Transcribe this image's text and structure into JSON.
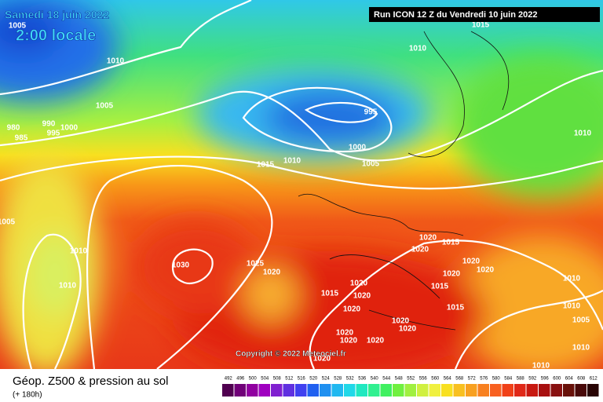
{
  "header": {
    "date": "Samedi 18 juin 2022",
    "time": "2:00 locale",
    "run": "Run ICON 12 Z du Vendredi 10 juin 2022"
  },
  "copyright": "Copyright © 2022 Meteociel.fr",
  "footer": {
    "title": "Géop. Z500 & pression au sol",
    "subtitle": "(+ 180h)"
  },
  "scale": [
    "492",
    "496",
    "500",
    "504",
    "508",
    "512",
    "516",
    "520",
    "524",
    "528",
    "532",
    "536",
    "540",
    "544",
    "548",
    "552",
    "556",
    "560",
    "564",
    "568",
    "572",
    "576",
    "580",
    "584",
    "588",
    "592",
    "596",
    "600",
    "604",
    "608",
    "612"
  ],
  "isobar_labels": [
    "1005",
    "1010",
    "1005",
    "980",
    "985",
    "990",
    "995",
    "1000",
    "1015",
    "1010",
    "995",
    "1000",
    "1005",
    "1010",
    "1015",
    "1010",
    "1010",
    "1010",
    "1005",
    "1030",
    "1025",
    "1020",
    "1020",
    "1020",
    "1015",
    "1020",
    "1020",
    "1020",
    "1020",
    "1015",
    "1020",
    "1015",
    "1015",
    "1020",
    "1010",
    "1010",
    "1020",
    "1020",
    "1020",
    "1020",
    "1020",
    "1010",
    "1005",
    "1020",
    "1010"
  ]
}
